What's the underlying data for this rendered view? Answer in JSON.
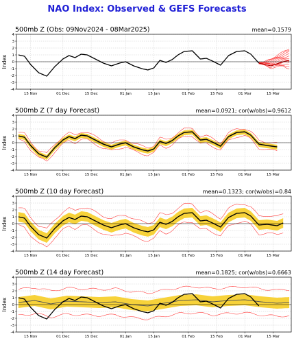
{
  "title": "NAO Index: Observed & GEFS Forecasts",
  "colors": {
    "observed": "#000000",
    "ensemble_member": "#ff3b3b",
    "spread_band": "#f7d23a",
    "ensemble_mean": "#555555",
    "title": "#1f1fd6"
  },
  "x_ticks": [
    "15 Nov",
    "01 Dec",
    "15 Dec",
    "01 Jan",
    "15 Jan",
    "01 Feb",
    "15 Feb",
    "01 Mar",
    "15 Mar"
  ],
  "chart_data": [
    {
      "type": "line",
      "title": "500mb Z (Obs: 09Nov2024 - 08Mar2025)",
      "stats": "mean=0.1579",
      "ylabel": "Index",
      "ylim": [
        -4,
        4
      ],
      "yticks": [
        -4,
        -3,
        -2,
        -1,
        0,
        1,
        2,
        3,
        4
      ],
      "grid": true,
      "x_start": "2024-11-09",
      "series": [
        {
          "kind": "observed",
          "x": [
            "2024-11-09",
            "2024-11-12",
            "2024-11-15",
            "2024-11-19",
            "2024-11-23",
            "2024-11-27",
            "2024-12-01",
            "2024-12-04",
            "2024-12-07",
            "2024-12-10",
            "2024-12-13",
            "2024-12-17",
            "2024-12-21",
            "2024-12-25",
            "2024-12-29",
            "2025-01-01",
            "2025-01-05",
            "2025-01-09",
            "2025-01-12",
            "2025-01-15",
            "2025-01-18",
            "2025-01-21",
            "2025-01-24",
            "2025-01-27",
            "2025-01-30",
            "2025-02-03",
            "2025-02-07",
            "2025-02-10",
            "2025-02-13",
            "2025-02-17",
            "2025-02-21",
            "2025-02-25",
            "2025-03-01",
            "2025-03-04",
            "2025-03-08"
          ],
          "values": [
            1.0,
            0.8,
            -0.4,
            -1.6,
            -2.1,
            -0.7,
            0.4,
            0.9,
            0.6,
            1.1,
            1.0,
            0.4,
            -0.2,
            -0.6,
            -0.2,
            0.0,
            -0.6,
            -1.0,
            -1.2,
            -0.9,
            0.2,
            -0.1,
            0.3,
            1.0,
            1.5,
            1.6,
            0.4,
            0.5,
            0.1,
            -0.5,
            0.9,
            1.5,
            1.6,
            1.1,
            -0.2
          ]
        }
      ],
      "forecast_plume": {
        "x": [
          "2025-03-08",
          "2025-03-11",
          "2025-03-14",
          "2025-03-17",
          "2025-03-20",
          "2025-03-23"
        ],
        "members_low": [
          -0.2,
          -0.5,
          -0.9,
          -0.8,
          -0.6,
          -1.0
        ],
        "members_high": [
          -0.2,
          0.0,
          0.4,
          1.0,
          1.4,
          1.9
        ],
        "mean": [
          -0.2,
          -0.4,
          -0.6,
          -0.3,
          0.0,
          0.2
        ]
      }
    },
    {
      "type": "line",
      "title": "500mb Z (7 day Forecast)",
      "stats": "mean=0.0921; cor(w/obs)=0.9612",
      "ylabel": "Index",
      "ylim": [
        -4,
        4
      ],
      "yticks": [
        -4,
        -3,
        -2,
        -1,
        0,
        1,
        2,
        3,
        4
      ],
      "grid": true,
      "x_start": "2024-11-09",
      "series": [
        {
          "kind": "observed",
          "x": [
            "2024-11-09",
            "2024-11-12",
            "2024-11-15",
            "2024-11-19",
            "2024-11-23",
            "2024-11-27",
            "2024-12-01",
            "2024-12-04",
            "2024-12-07",
            "2024-12-10",
            "2024-12-13",
            "2024-12-17",
            "2024-12-21",
            "2024-12-25",
            "2024-12-29",
            "2025-01-01",
            "2025-01-05",
            "2025-01-09",
            "2025-01-12",
            "2025-01-15",
            "2025-01-18",
            "2025-01-21",
            "2025-01-24",
            "2025-01-27",
            "2025-01-30",
            "2025-02-03",
            "2025-02-07",
            "2025-02-10",
            "2025-02-13",
            "2025-02-17",
            "2025-02-21",
            "2025-02-25",
            "2025-03-01",
            "2025-03-04",
            "2025-03-08",
            "2025-03-12",
            "2025-03-17"
          ],
          "values": [
            1.0,
            0.8,
            -0.4,
            -1.6,
            -2.1,
            -0.7,
            0.4,
            0.9,
            0.6,
            1.1,
            1.0,
            0.4,
            -0.2,
            -0.6,
            -0.2,
            0.0,
            -0.6,
            -1.0,
            -1.2,
            -0.9,
            0.2,
            -0.1,
            0.3,
            1.0,
            1.5,
            1.6,
            0.4,
            0.5,
            0.1,
            -0.5,
            0.9,
            1.5,
            1.6,
            1.1,
            -0.2,
            -0.4,
            -0.6
          ]
        }
      ],
      "band_halfwidth": 0.35,
      "member_offsets": [
        0.55,
        -0.55
      ],
      "mean_shift": -0.05
    },
    {
      "type": "line",
      "title": "500mb Z (10 day Forecast)",
      "stats": "mean=0.1323; cor(w/obs)=0.84",
      "ylabel": "Index",
      "ylim": [
        -4,
        4
      ],
      "yticks": [
        -4,
        -3,
        -2,
        -1,
        0,
        1,
        2,
        3,
        4
      ],
      "grid": true,
      "x_start": "2024-11-09",
      "series": [
        {
          "kind": "observed",
          "x": [
            "2024-11-09",
            "2024-11-12",
            "2024-11-15",
            "2024-11-19",
            "2024-11-23",
            "2024-11-27",
            "2024-12-01",
            "2024-12-04",
            "2024-12-07",
            "2024-12-10",
            "2024-12-13",
            "2024-12-17",
            "2024-12-21",
            "2024-12-25",
            "2024-12-29",
            "2025-01-01",
            "2025-01-05",
            "2025-01-09",
            "2025-01-12",
            "2025-01-15",
            "2025-01-18",
            "2025-01-21",
            "2025-01-24",
            "2025-01-27",
            "2025-01-30",
            "2025-02-03",
            "2025-02-07",
            "2025-02-10",
            "2025-02-13",
            "2025-02-17",
            "2025-02-21",
            "2025-02-25",
            "2025-03-01",
            "2025-03-04",
            "2025-03-08",
            "2025-03-12",
            "2025-03-17",
            "2025-03-20"
          ],
          "values": [
            1.0,
            0.8,
            -0.4,
            -1.6,
            -2.1,
            -0.7,
            0.4,
            0.9,
            0.6,
            1.1,
            1.0,
            0.4,
            -0.2,
            -0.6,
            -0.2,
            0.0,
            -0.6,
            -1.0,
            -1.2,
            -0.9,
            0.2,
            -0.1,
            0.3,
            1.0,
            1.5,
            1.6,
            0.4,
            0.5,
            0.1,
            -0.5,
            0.9,
            1.5,
            1.6,
            1.1,
            -0.2,
            -0.1,
            -0.3,
            0.1
          ]
        }
      ],
      "band_halfwidth": 0.7,
      "member_offsets": [
        1.3,
        -1.3
      ],
      "mean_shift": 0.0
    },
    {
      "type": "line",
      "title": "500mb Z (14 day Forecast)",
      "stats": "mean=0.1825; cor(w/obs)=0.6663",
      "ylabel": "Index",
      "ylim": [
        -4,
        4
      ],
      "yticks": [
        -4,
        -3,
        -2,
        -1,
        0,
        1,
        2,
        3,
        4
      ],
      "grid": true,
      "x_start": "2024-11-09",
      "series": [
        {
          "kind": "observed",
          "x": [
            "2024-11-09",
            "2024-11-12",
            "2024-11-15",
            "2024-11-19",
            "2024-11-23",
            "2024-11-27",
            "2024-12-01",
            "2024-12-04",
            "2024-12-07",
            "2024-12-10",
            "2024-12-13",
            "2024-12-17",
            "2024-12-21",
            "2024-12-25",
            "2024-12-29",
            "2025-01-01",
            "2025-01-05",
            "2025-01-09",
            "2025-01-12",
            "2025-01-15",
            "2025-01-18",
            "2025-01-21",
            "2025-01-24",
            "2025-01-27",
            "2025-01-30",
            "2025-02-03",
            "2025-02-07",
            "2025-02-10",
            "2025-02-13",
            "2025-02-17",
            "2025-02-21",
            "2025-02-25",
            "2025-03-01",
            "2025-03-04",
            "2025-03-08"
          ],
          "values": [
            1.0,
            0.8,
            -0.4,
            -1.6,
            -2.1,
            -0.7,
            0.4,
            0.9,
            0.6,
            1.1,
            1.0,
            0.4,
            -0.2,
            -0.6,
            -0.2,
            0.0,
            -0.6,
            -1.0,
            -1.2,
            -0.9,
            0.2,
            -0.1,
            0.3,
            1.0,
            1.5,
            1.6,
            0.4,
            0.5,
            0.1,
            -0.5,
            0.9,
            1.5,
            1.6,
            1.1,
            -0.2
          ]
        }
      ],
      "forecast_mean": {
        "x": [
          "2024-11-09",
          "2024-11-17",
          "2024-11-25",
          "2024-12-03",
          "2024-12-11",
          "2024-12-19",
          "2024-12-27",
          "2025-01-04",
          "2025-01-12",
          "2025-01-20",
          "2025-01-28",
          "2025-02-05",
          "2025-02-13",
          "2025-02-21",
          "2025-03-01",
          "2025-03-09",
          "2025-03-17",
          "2025-03-23"
        ],
        "values": [
          0.3,
          0.6,
          0.1,
          0.5,
          0.4,
          0.3,
          0.4,
          0.0,
          -0.2,
          0.2,
          0.6,
          0.7,
          0.4,
          0.6,
          0.7,
          0.4,
          0.2,
          0.3
        ]
      },
      "band_halfwidth": 0.8,
      "member_offsets": [
        1.9,
        -1.9
      ],
      "mean_shift": 0.0
    }
  ]
}
